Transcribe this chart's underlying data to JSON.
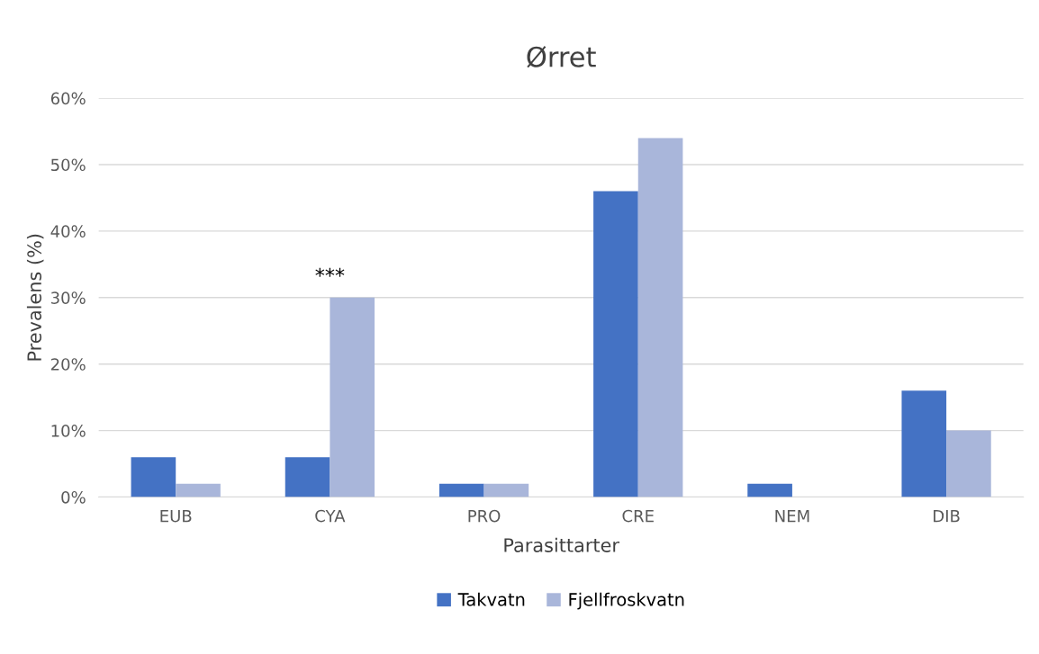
{
  "chart_data": {
    "type": "bar",
    "title": "Ørret",
    "xlabel": "Parasittarter",
    "ylabel": "Prevalens (%)",
    "categories": [
      "EUB",
      "CYA",
      "PRO",
      "CRE",
      "NEM",
      "DIB"
    ],
    "series": [
      {
        "name": "Takvatn",
        "color": "#4472c4",
        "values": [
          6,
          6,
          2,
          46,
          2,
          16
        ]
      },
      {
        "name": "Fjellfroskvatn",
        "color": "#a9b6da",
        "values": [
          2,
          30,
          2,
          54,
          0,
          10
        ]
      }
    ],
    "ylim": [
      0,
      60
    ],
    "yticks": [
      {
        "value": 0,
        "label": "0%"
      },
      {
        "value": 10,
        "label": "10%"
      },
      {
        "value": 20,
        "label": "20%"
      },
      {
        "value": 30,
        "label": "30%"
      },
      {
        "value": 40,
        "label": "40%"
      },
      {
        "value": 50,
        "label": "50%"
      },
      {
        "value": 60,
        "label": "60%"
      }
    ],
    "annotations": [
      {
        "text": "***",
        "x": "CYA",
        "y": 30
      }
    ],
    "grid": "y",
    "legend": "bottom"
  }
}
